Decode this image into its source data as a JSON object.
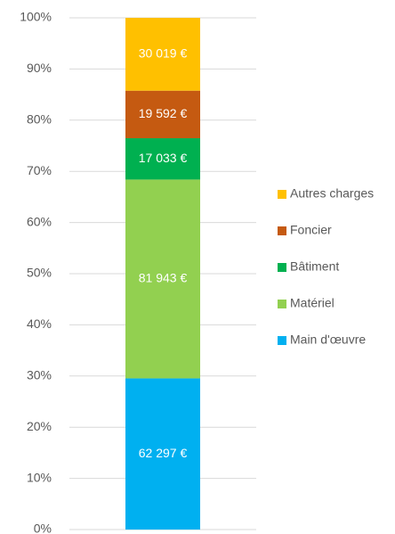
{
  "chart_data": {
    "type": "bar",
    "stacking": "percent",
    "categories": [
      null
    ],
    "series": [
      {
        "name": "Main d'œuvre",
        "color": "#00b0f0",
        "values": [
          62297
        ],
        "value_labels": [
          "62 297 €"
        ]
      },
      {
        "name": "Matériel",
        "color": "#92d050",
        "values": [
          81943
        ],
        "value_labels": [
          "81 943 €"
        ]
      },
      {
        "name": "Bâtiment",
        "color": "#00b050",
        "values": [
          17033
        ],
        "value_labels": [
          "17 033 €"
        ]
      },
      {
        "name": "Foncier",
        "color": "#c55a11",
        "values": [
          19592
        ],
        "value_labels": [
          "19 592 €"
        ]
      },
      {
        "name": "Autres charges",
        "color": "#ffc000",
        "values": [
          30019
        ],
        "value_labels": [
          "30 019 €"
        ]
      }
    ],
    "ylim": [
      0,
      100
    ],
    "yticks": [
      {
        "value": 0,
        "label": "0%"
      },
      {
        "value": 10,
        "label": "10%"
      },
      {
        "value": 20,
        "label": "20%"
      },
      {
        "value": 30,
        "label": "30%"
      },
      {
        "value": 40,
        "label": "40%"
      },
      {
        "value": 50,
        "label": "50%"
      },
      {
        "value": 60,
        "label": "60%"
      },
      {
        "value": 70,
        "label": "70%"
      },
      {
        "value": 80,
        "label": "80%"
      },
      {
        "value": 90,
        "label": "90%"
      },
      {
        "value": 100,
        "label": "100%"
      }
    ],
    "grid": true,
    "legend": "right"
  }
}
